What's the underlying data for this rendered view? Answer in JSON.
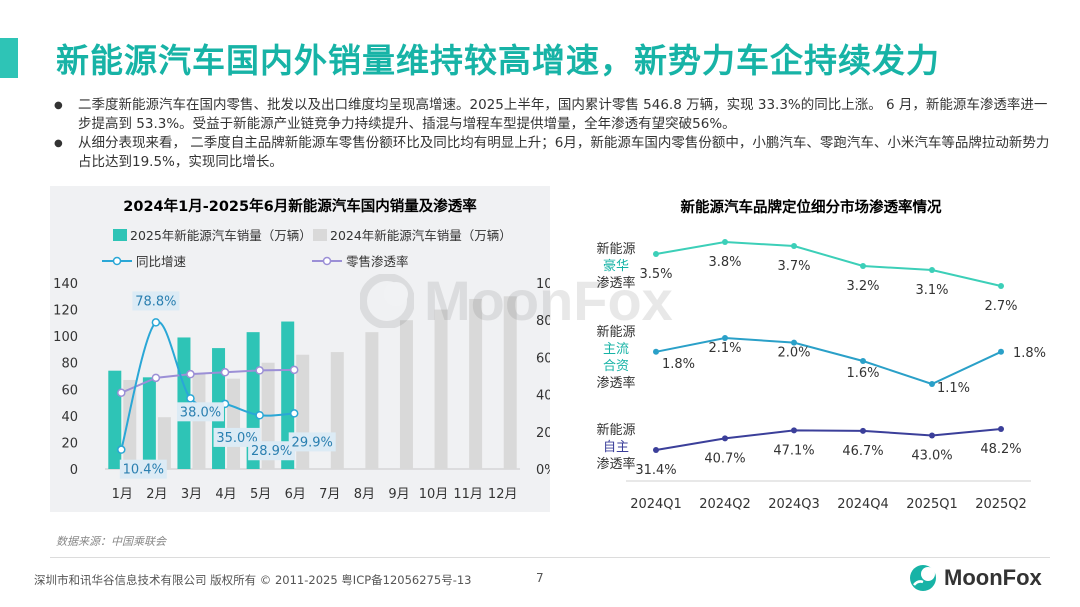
{
  "page": {
    "title": "新能源汽车国内外销量维持较高增速，新势力车企持续发力",
    "bullets": [
      "二季度新能源汽车在国内零售、批发以及出口维度均呈现高增速。2025上半年，国内累计零售 546.8 万辆，实现 33.3%的同比上涨。 6 月，新能源车渗透率进一步提高到 53.3%。受益于新能源产业链竞争力持续提升、插混与增程车型提供增量，全年渗透有望突破56%。",
      "从细分表现来看， 二季度自主品牌新能源车零售份额环比及同比均有明显上升；6月，新能源车国内零售份额中，小鹏汽车、零跑汽车、小米汽车等品牌拉动新势力占比达到19.5%，实现同比增长。"
    ],
    "source": "数据来源：中国乘联会",
    "footer": "深圳市和讯华谷信息技术有限公司 版权所有 © 2011-2025 粤ICP备12056275号-13",
    "page_number": "7",
    "logo_text": "MoonFox",
    "watermark_text": "MoonFox"
  },
  "colors": {
    "accent": "#17b3a6",
    "bar2025": "#2ec4b6",
    "bar2024": "#d9d9d9",
    "yoy_line": "#2aa7d6",
    "pen_line": "#9b8fd6",
    "luxury_line": "#3ccfb8",
    "mainstream_line": "#2aa0c8",
    "domestic_line": "#3b3f9a"
  },
  "chart_data": [
    {
      "type": "bar",
      "title": "2024年1月-2025年6月新能源汽车国内销量及渗透率",
      "categories": [
        "1月",
        "2月",
        "3月",
        "4月",
        "5月",
        "6月",
        "7月",
        "8月",
        "9月",
        "10月",
        "11月",
        "12月"
      ],
      "series": [
        {
          "name": "2025年新能源汽车销量（万辆）",
          "values": [
            74,
            69,
            99,
            91,
            103,
            111,
            null,
            null,
            null,
            null,
            null,
            null
          ]
        },
        {
          "name": "2024年新能源汽车销量（万辆）",
          "values": [
            67,
            39,
            72,
            68,
            80,
            86,
            88,
            103,
            112,
            120,
            128,
            130
          ]
        },
        {
          "name": "同比增速",
          "type": "line",
          "axis": "right",
          "values": [
            10.4,
            78.8,
            38.0,
            35.0,
            28.9,
            29.9,
            null,
            null,
            null,
            null,
            null,
            null
          ],
          "labels": [
            "10.4%",
            "78.8%",
            "38.0%",
            "35.0%",
            "28.9%",
            "29.9%"
          ]
        },
        {
          "name": "零售渗透率",
          "type": "line",
          "axis": "right",
          "values": [
            41,
            49,
            51,
            52,
            53,
            53.3,
            null,
            null,
            null,
            null,
            null,
            null
          ]
        }
      ],
      "ylim": [
        0,
        140
      ],
      "yticks": [
        "0",
        "20",
        "40",
        "60",
        "80",
        "100",
        "120",
        "140"
      ],
      "y2lim": [
        0,
        100
      ],
      "y2ticks": [
        "0%",
        "20%",
        "40%",
        "60%",
        "80%",
        "100%"
      ],
      "legend": "top"
    },
    {
      "type": "line",
      "title": "新能源汽车品牌定位细分市场渗透率情况",
      "categories": [
        "2024Q1",
        "2024Q2",
        "2024Q3",
        "2024Q4",
        "2025Q1",
        "2025Q2"
      ],
      "series": [
        {
          "name": "新能源豪华渗透率",
          "label_lines": [
            "新能源",
            "豪华",
            "渗透率"
          ],
          "values": [
            3.5,
            3.8,
            3.7,
            3.2,
            3.1,
            2.7
          ],
          "labels": [
            "3.5%",
            "3.8%",
            "3.7%",
            "3.2%",
            "3.1%",
            "2.7%"
          ]
        },
        {
          "name": "新能源主流合资渗透率",
          "label_lines": [
            "新能源",
            "主流",
            "合资",
            "渗透率"
          ],
          "values": [
            1.8,
            2.1,
            2.0,
            1.6,
            1.1,
            1.8
          ],
          "labels": [
            "1.8%",
            "2.1%",
            "2.0%",
            "1.6%",
            "1.1%",
            "1.8%"
          ]
        },
        {
          "name": "新能源自主渗透率",
          "label_lines": [
            "新能源",
            "自主",
            "渗透率"
          ],
          "values": [
            31.4,
            40.7,
            47.1,
            46.7,
            43.0,
            48.2
          ],
          "labels": [
            "31.4%",
            "40.7%",
            "47.1%",
            "46.7%",
            "43.0%",
            "48.2%"
          ]
        }
      ]
    }
  ]
}
